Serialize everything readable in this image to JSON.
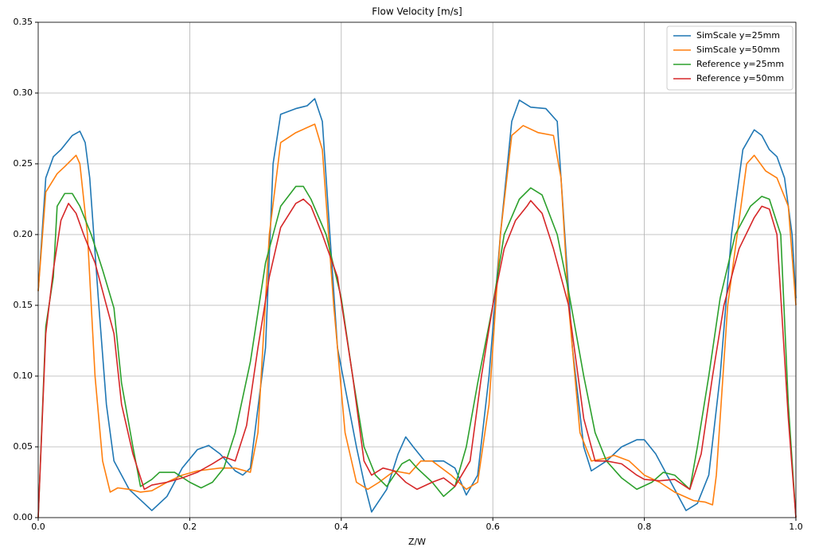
{
  "chart_data": {
    "type": "line",
    "title": "Flow Velocity [m/s]",
    "xlabel": "Z/W",
    "xlim": [
      0,
      1
    ],
    "ylim": [
      0,
      0.35
    ],
    "xticks": [
      {
        "value": 0,
        "label": "0.0"
      },
      0.2,
      0.4,
      0.6,
      0.8,
      {
        "value": 1,
        "label": "1.0"
      }
    ],
    "yticks": [
      {
        "value": 0,
        "label": "0.00"
      },
      {
        "value": 0.05,
        "label": "0.05"
      },
      {
        "value": 0.1,
        "label": "0.10"
      },
      {
        "value": 0.15,
        "label": "0.15"
      },
      {
        "value": 0.2,
        "label": "0.20"
      },
      {
        "value": 0.25,
        "label": "0.25"
      },
      {
        "value": 0.3,
        "label": "0.30"
      },
      {
        "value": 0.35,
        "label": "0.35"
      }
    ],
    "grid": true,
    "legend": "upper right",
    "series": [
      {
        "name": "SimScale y=25mm",
        "color": "#1f77b4",
        "x": [
          0,
          0.01,
          0.02,
          0.03,
          0.045,
          0.055,
          0.062,
          0.068,
          0.08,
          0.09,
          0.1,
          0.12,
          0.14,
          0.15,
          0.17,
          0.19,
          0.21,
          0.225,
          0.24,
          0.26,
          0.27,
          0.28,
          0.3,
          0.31,
          0.32,
          0.34,
          0.355,
          0.365,
          0.375,
          0.385,
          0.395,
          0.42,
          0.43,
          0.44,
          0.46,
          0.475,
          0.485,
          0.495,
          0.51,
          0.535,
          0.55,
          0.565,
          0.58,
          0.595,
          0.61,
          0.625,
          0.635,
          0.65,
          0.67,
          0.685,
          0.695,
          0.705,
          0.72,
          0.73,
          0.75,
          0.77,
          0.79,
          0.8,
          0.815,
          0.835,
          0.855,
          0.87,
          0.885,
          0.9,
          0.915,
          0.93,
          0.945,
          0.955,
          0.965,
          0.975,
          0.985,
          0.995,
          1
        ],
        "values": [
          0.16,
          0.24,
          0.255,
          0.26,
          0.27,
          0.273,
          0.265,
          0.24,
          0.15,
          0.08,
          0.04,
          0.02,
          0.01,
          0.005,
          0.015,
          0.035,
          0.048,
          0.051,
          0.045,
          0.033,
          0.03,
          0.035,
          0.12,
          0.25,
          0.285,
          0.289,
          0.291,
          0.296,
          0.28,
          0.2,
          0.12,
          0.05,
          0.025,
          0.004,
          0.02,
          0.045,
          0.057,
          0.05,
          0.04,
          0.04,
          0.035,
          0.016,
          0.03,
          0.1,
          0.2,
          0.28,
          0.295,
          0.29,
          0.289,
          0.28,
          0.2,
          0.12,
          0.05,
          0.033,
          0.04,
          0.05,
          0.055,
          0.055,
          0.045,
          0.025,
          0.005,
          0.01,
          0.03,
          0.1,
          0.2,
          0.26,
          0.274,
          0.27,
          0.26,
          0.255,
          0.24,
          0.2,
          0.155
        ]
      },
      {
        "name": "SimScale y=50mm",
        "color": "#ff7f0e",
        "x": [
          0,
          0.01,
          0.025,
          0.035,
          0.05,
          0.055,
          0.065,
          0.075,
          0.085,
          0.095,
          0.105,
          0.12,
          0.135,
          0.15,
          0.17,
          0.19,
          0.21,
          0.24,
          0.26,
          0.28,
          0.29,
          0.305,
          0.32,
          0.34,
          0.365,
          0.375,
          0.39,
          0.405,
          0.42,
          0.435,
          0.45,
          0.47,
          0.49,
          0.505,
          0.52,
          0.545,
          0.565,
          0.58,
          0.595,
          0.61,
          0.625,
          0.64,
          0.66,
          0.68,
          0.69,
          0.7,
          0.715,
          0.73,
          0.75,
          0.76,
          0.78,
          0.8,
          0.82,
          0.84,
          0.865,
          0.88,
          0.89,
          0.895,
          0.91,
          0.935,
          0.945,
          0.96,
          0.975,
          0.99,
          1
        ],
        "values": [
          0.16,
          0.23,
          0.243,
          0.248,
          0.256,
          0.25,
          0.2,
          0.1,
          0.04,
          0.018,
          0.021,
          0.02,
          0.018,
          0.019,
          0.025,
          0.03,
          0.033,
          0.035,
          0.035,
          0.032,
          0.06,
          0.2,
          0.265,
          0.272,
          0.278,
          0.26,
          0.15,
          0.06,
          0.025,
          0.02,
          0.025,
          0.033,
          0.031,
          0.04,
          0.04,
          0.03,
          0.02,
          0.025,
          0.08,
          0.2,
          0.27,
          0.277,
          0.272,
          0.27,
          0.24,
          0.15,
          0.06,
          0.04,
          0.042,
          0.044,
          0.04,
          0.03,
          0.025,
          0.018,
          0.012,
          0.011,
          0.009,
          0.03,
          0.15,
          0.25,
          0.256,
          0.245,
          0.24,
          0.22,
          0.15
        ]
      },
      {
        "name": "Reference y=25mm",
        "color": "#2ca02c",
        "x": [
          0,
          0.01,
          0.02,
          0.025,
          0.035,
          0.045,
          0.055,
          0.07,
          0.085,
          0.1,
          0.11,
          0.125,
          0.135,
          0.15,
          0.16,
          0.18,
          0.2,
          0.215,
          0.23,
          0.245,
          0.26,
          0.28,
          0.3,
          0.32,
          0.34,
          0.35,
          0.36,
          0.38,
          0.4,
          0.415,
          0.43,
          0.445,
          0.46,
          0.47,
          0.48,
          0.49,
          0.5,
          0.52,
          0.535,
          0.55,
          0.565,
          0.58,
          0.6,
          0.615,
          0.635,
          0.65,
          0.665,
          0.685,
          0.7,
          0.72,
          0.735,
          0.75,
          0.77,
          0.79,
          0.81,
          0.825,
          0.84,
          0.86,
          0.87,
          0.885,
          0.9,
          0.92,
          0.94,
          0.955,
          0.965,
          0.98,
          0.99,
          1
        ],
        "values": [
          0,
          0.135,
          0.17,
          0.22,
          0.229,
          0.229,
          0.22,
          0.2,
          0.175,
          0.148,
          0.095,
          0.05,
          0.022,
          0.027,
          0.032,
          0.032,
          0.025,
          0.021,
          0.025,
          0.035,
          0.06,
          0.11,
          0.18,
          0.22,
          0.234,
          0.234,
          0.225,
          0.2,
          0.155,
          0.1,
          0.05,
          0.03,
          0.022,
          0.03,
          0.038,
          0.041,
          0.035,
          0.025,
          0.015,
          0.022,
          0.05,
          0.095,
          0.15,
          0.2,
          0.225,
          0.233,
          0.228,
          0.2,
          0.16,
          0.1,
          0.06,
          0.04,
          0.028,
          0.02,
          0.025,
          0.032,
          0.03,
          0.02,
          0.05,
          0.1,
          0.155,
          0.2,
          0.22,
          0.227,
          0.225,
          0.2,
          0.08,
          0
        ]
      },
      {
        "name": "Reference y=50mm",
        "color": "#d62728",
        "x": [
          0,
          0.01,
          0.02,
          0.03,
          0.04,
          0.05,
          0.06,
          0.075,
          0.09,
          0.1,
          0.11,
          0.125,
          0.14,
          0.15,
          0.17,
          0.19,
          0.21,
          0.23,
          0.245,
          0.26,
          0.275,
          0.29,
          0.305,
          0.32,
          0.34,
          0.35,
          0.36,
          0.375,
          0.395,
          0.415,
          0.43,
          0.44,
          0.455,
          0.47,
          0.485,
          0.5,
          0.52,
          0.535,
          0.55,
          0.57,
          0.585,
          0.6,
          0.615,
          0.63,
          0.645,
          0.65,
          0.665,
          0.68,
          0.7,
          0.72,
          0.735,
          0.75,
          0.77,
          0.79,
          0.8,
          0.82,
          0.84,
          0.86,
          0.875,
          0.89,
          0.905,
          0.925,
          0.945,
          0.955,
          0.965,
          0.975,
          0.99,
          1
        ],
        "values": [
          0,
          0.13,
          0.175,
          0.21,
          0.222,
          0.215,
          0.2,
          0.18,
          0.15,
          0.13,
          0.08,
          0.045,
          0.02,
          0.023,
          0.025,
          0.028,
          0.032,
          0.038,
          0.043,
          0.04,
          0.065,
          0.12,
          0.17,
          0.205,
          0.222,
          0.225,
          0.22,
          0.2,
          0.17,
          0.1,
          0.04,
          0.03,
          0.035,
          0.033,
          0.025,
          0.02,
          0.025,
          0.028,
          0.022,
          0.04,
          0.1,
          0.15,
          0.19,
          0.21,
          0.22,
          0.224,
          0.215,
          0.19,
          0.15,
          0.07,
          0.04,
          0.04,
          0.038,
          0.03,
          0.027,
          0.026,
          0.027,
          0.02,
          0.045,
          0.1,
          0.15,
          0.19,
          0.212,
          0.22,
          0.218,
          0.2,
          0.07,
          0
        ]
      }
    ]
  }
}
